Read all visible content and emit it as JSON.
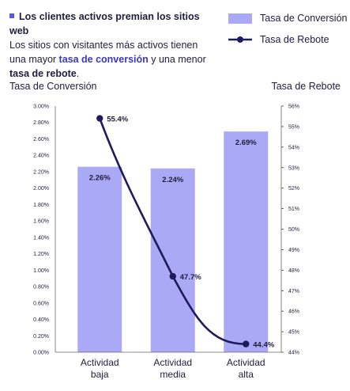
{
  "header": {
    "title": "Los clientes activos premian los sitios web",
    "text_part1": "Los sitios con visitantes más activos tienen una mayor ",
    "highlight1": "tasa de conversión",
    "text_part2": " y una menor ",
    "highlight2": "tasa de rebote",
    "text_part3": "."
  },
  "colors": {
    "bar": "#a9a9f5",
    "line": "#1e1b5a",
    "accent": "#3a37c7"
  },
  "chart_data": {
    "type": "bar",
    "categories": [
      [
        "Actividad",
        "baja"
      ],
      [
        "Actividad",
        "media"
      ],
      [
        "Actividad",
        "alta"
      ]
    ],
    "series": [
      {
        "name": "Tasa de Conversión",
        "kind": "bar",
        "axis": "left",
        "values": [
          2.26,
          2.24,
          2.69
        ],
        "labels": [
          "2.26%",
          "2.24%",
          "2.69%"
        ]
      },
      {
        "name": "Tasa de Rebote",
        "kind": "line",
        "axis": "right",
        "values": [
          55.4,
          47.7,
          44.4
        ],
        "labels": [
          "55.4%",
          "47.7%",
          "44.4%"
        ]
      }
    ],
    "y_left": {
      "label": "Tasa de Conversión",
      "range": [
        0,
        3
      ],
      "ticks": [
        "0.00%",
        "0.20%",
        "0.40%",
        "0.60%",
        "0.80%",
        "1.00%",
        "1.20%",
        "1.40%",
        "1.60%",
        "1.80%",
        "2.00%",
        "2.20%",
        "2.40%",
        "2.60%",
        "2.80%",
        "3.00%"
      ]
    },
    "y_right": {
      "label": "Tasa de Rebote",
      "range": [
        44,
        56
      ],
      "ticks": [
        "44%",
        "45%",
        "46%",
        "47%",
        "48%",
        "49%",
        "50%",
        "51%",
        "52%",
        "53%",
        "54%",
        "55%",
        "56%"
      ]
    },
    "legend": "top-right",
    "grid": false
  }
}
